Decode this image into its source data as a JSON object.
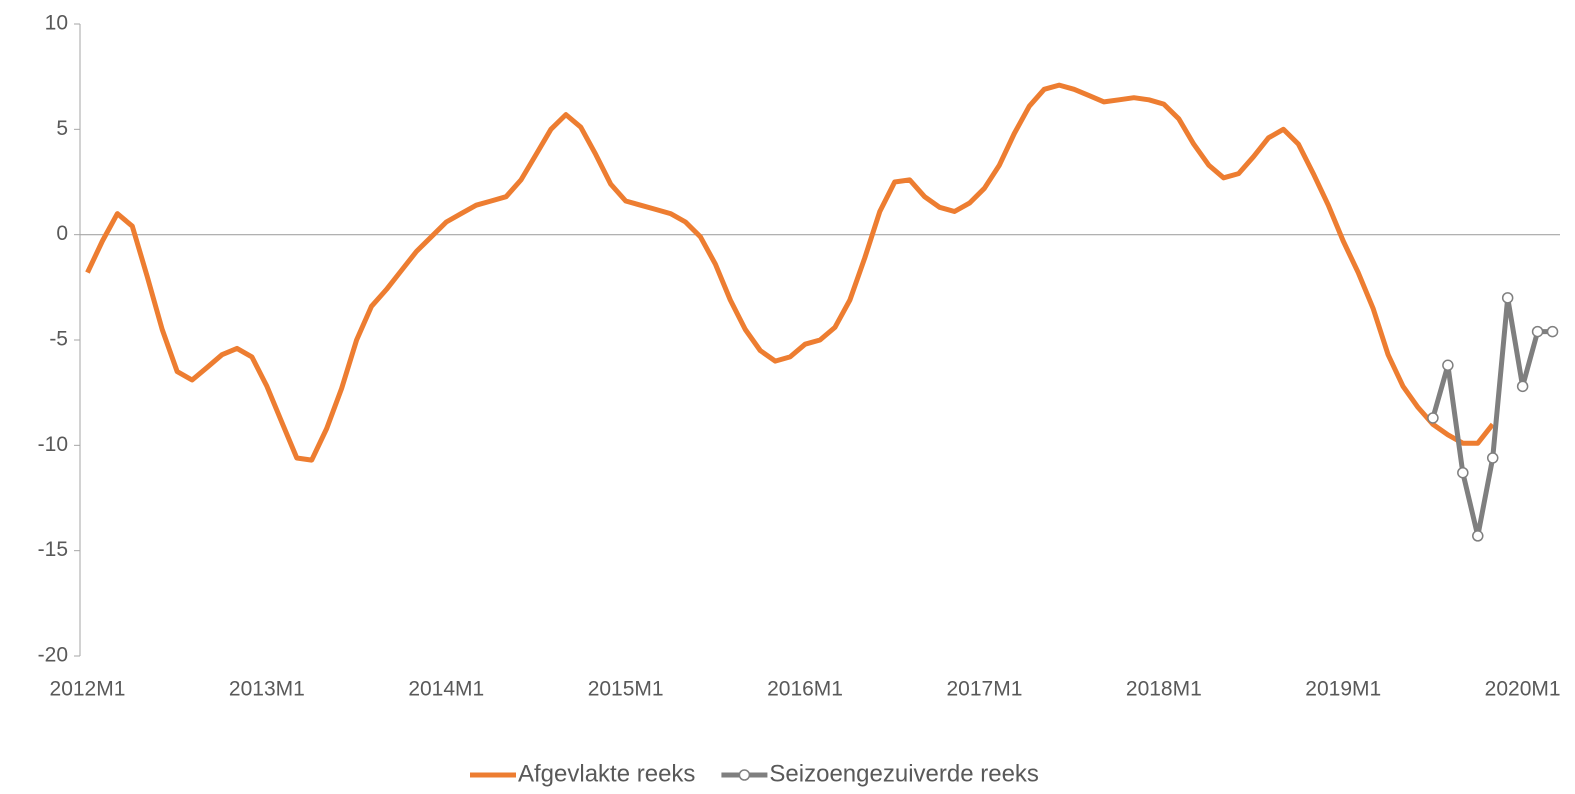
{
  "chart_data": {
    "type": "line",
    "categories": [
      "2012M1",
      null,
      null,
      null,
      null,
      null,
      null,
      null,
      null,
      null,
      null,
      null,
      "2013M1",
      null,
      null,
      null,
      null,
      null,
      null,
      null,
      null,
      null,
      null,
      null,
      "2014M1",
      null,
      null,
      null,
      null,
      null,
      null,
      null,
      null,
      null,
      null,
      null,
      "2015M1",
      null,
      null,
      null,
      null,
      null,
      null,
      null,
      null,
      null,
      null,
      null,
      "2016M1",
      null,
      null,
      null,
      null,
      null,
      null,
      null,
      null,
      null,
      null,
      null,
      "2017M1",
      null,
      null,
      null,
      null,
      null,
      null,
      null,
      null,
      null,
      null,
      null,
      "2018M1",
      null,
      null,
      null,
      null,
      null,
      null,
      null,
      null,
      null,
      null,
      null,
      "2019M1",
      null,
      null,
      null,
      null,
      null,
      null,
      null,
      null,
      null,
      null,
      null,
      "2020M1",
      null,
      null
    ],
    "series": [
      {
        "name": "Afgevlakte reeks",
        "color": "#ed7d31",
        "markers": false,
        "values": [
          -1.8,
          -0.3,
          1.0,
          0.4,
          -2.0,
          -4.5,
          -6.5,
          -6.9,
          -6.3,
          -5.7,
          -5.4,
          -5.8,
          -7.2,
          -8.9,
          -10.6,
          -10.7,
          -9.2,
          -7.3,
          -5.0,
          -3.4,
          -2.6,
          -1.7,
          -0.8,
          -0.1,
          0.6,
          1.0,
          1.4,
          1.6,
          1.8,
          2.6,
          3.8,
          5.0,
          5.7,
          5.1,
          3.8,
          2.4,
          1.6,
          1.4,
          1.2,
          1.0,
          0.6,
          -0.1,
          -1.4,
          -3.1,
          -4.5,
          -5.5,
          -6.0,
          -5.8,
          -5.2,
          -5.0,
          -4.4,
          -3.1,
          -1.1,
          1.1,
          2.5,
          2.6,
          1.8,
          1.3,
          1.1,
          1.5,
          2.2,
          3.3,
          4.8,
          6.1,
          6.9,
          7.1,
          6.9,
          6.6,
          6.3,
          6.4,
          6.5,
          6.4,
          6.2,
          5.5,
          4.3,
          3.3,
          2.7,
          2.9,
          3.7,
          4.6,
          5.0,
          4.3,
          2.9,
          1.4,
          -0.3,
          -1.8,
          -3.5,
          -5.7,
          -7.2,
          -8.2,
          -9.0,
          -9.5,
          -9.9,
          -9.9,
          -9.0,
          null,
          null,
          null,
          null
        ]
      },
      {
        "name": "Seizoengezuiverde reeks",
        "color": "#7f7f7f",
        "markers": true,
        "values": [
          null,
          null,
          null,
          null,
          null,
          null,
          null,
          null,
          null,
          null,
          null,
          null,
          null,
          null,
          null,
          null,
          null,
          null,
          null,
          null,
          null,
          null,
          null,
          null,
          null,
          null,
          null,
          null,
          null,
          null,
          null,
          null,
          null,
          null,
          null,
          null,
          null,
          null,
          null,
          null,
          null,
          null,
          null,
          null,
          null,
          null,
          null,
          null,
          null,
          null,
          null,
          null,
          null,
          null,
          null,
          null,
          null,
          null,
          null,
          null,
          null,
          null,
          null,
          null,
          null,
          null,
          null,
          null,
          null,
          null,
          null,
          null,
          null,
          null,
          null,
          null,
          null,
          null,
          null,
          null,
          null,
          null,
          null,
          null,
          null,
          null,
          null,
          null,
          null,
          null,
          -8.7,
          -6.2,
          -11.3,
          -14.3,
          -10.6,
          -3.0,
          -7.2,
          -4.6,
          -4.6
        ]
      }
    ],
    "ylim": [
      -20,
      10
    ],
    "yticks": [
      10,
      5,
      0,
      -5,
      -10,
      -15,
      -20
    ],
    "grid": false,
    "legend": "bottom"
  }
}
